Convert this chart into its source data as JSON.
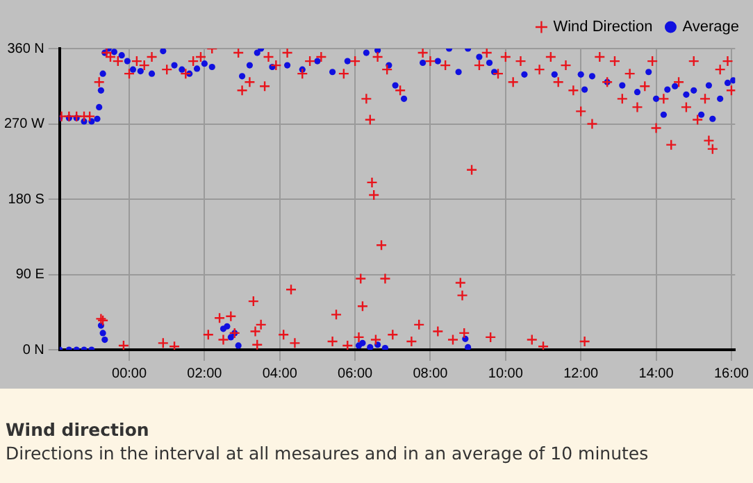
{
  "chart_data": {
    "type": "scatter",
    "title": "Wind direction",
    "subtitle": "Directions in the interval at all mesaures and in an average of 10 minutes",
    "xlim": [
      -1.85,
      16.1
    ],
    "xticks": [
      {
        "value": 0,
        "label": "00:00"
      },
      {
        "value": 2,
        "label": "02:00"
      },
      {
        "value": 4,
        "label": "04:00"
      },
      {
        "value": 6,
        "label": "06:00"
      },
      {
        "value": 8,
        "label": "08:00"
      },
      {
        "value": 10,
        "label": "10:00"
      },
      {
        "value": 12,
        "label": "12:00"
      },
      {
        "value": 14,
        "label": "14:00"
      },
      {
        "value": 16,
        "label": "16:00"
      }
    ],
    "ylim": [
      0,
      360
    ],
    "yticks": [
      {
        "value": 0,
        "label": "0 N"
      },
      {
        "value": 90,
        "label": "90 E"
      },
      {
        "value": 180,
        "label": "180 S"
      },
      {
        "value": 270,
        "label": "270 W"
      },
      {
        "value": 360,
        "label": "360 N"
      }
    ],
    "grid": true,
    "legend": "top right",
    "series": [
      {
        "name": "Wind Direction",
        "color": "#e8141c",
        "marker": "cross",
        "x": [
          -1.8,
          -1.6,
          -1.4,
          -1.2,
          -1.05,
          -0.8,
          -0.75,
          -0.7,
          -0.6,
          -0.5,
          -0.3,
          -0.15,
          0.0,
          0.2,
          0.4,
          0.6,
          0.9,
          1.0,
          1.2,
          1.5,
          1.7,
          1.9,
          2.1,
          2.2,
          2.4,
          2.5,
          2.7,
          2.8,
          2.9,
          3.0,
          3.2,
          3.3,
          3.35,
          3.4,
          3.5,
          3.6,
          3.7,
          3.9,
          4.1,
          4.2,
          4.3,
          4.4,
          4.6,
          4.8,
          5.1,
          5.4,
          5.5,
          5.7,
          5.8,
          6.0,
          6.1,
          6.15,
          6.2,
          6.3,
          6.4,
          6.45,
          6.5,
          6.55,
          6.6,
          6.7,
          6.8,
          6.85,
          7.0,
          7.2,
          7.5,
          7.7,
          7.8,
          8.0,
          8.2,
          8.4,
          8.6,
          8.8,
          8.85,
          8.9,
          9.1,
          9.3,
          9.5,
          9.6,
          9.8,
          10.0,
          10.2,
          10.4,
          10.7,
          10.9,
          11.0,
          11.2,
          11.4,
          11.6,
          11.8,
          12.0,
          12.1,
          12.3,
          12.5,
          12.7,
          12.9,
          13.1,
          13.3,
          13.5,
          13.7,
          13.9,
          14.0,
          14.2,
          14.4,
          14.6,
          14.8,
          15.0,
          15.1,
          15.3,
          15.4,
          15.5,
          15.7,
          15.9,
          16.0
        ],
        "values": [
          279,
          279,
          279,
          279,
          279,
          320,
          37,
          35,
          355,
          350,
          345,
          5,
          330,
          345,
          340,
          350,
          8,
          335,
          4,
          330,
          345,
          350,
          18,
          360,
          38,
          12,
          40,
          20,
          355,
          310,
          320,
          58,
          22,
          6,
          30,
          315,
          350,
          340,
          18,
          355,
          72,
          8,
          330,
          345,
          350,
          10,
          42,
          330,
          5,
          345,
          15,
          85,
          52,
          300,
          275,
          200,
          185,
          12,
          350,
          125,
          85,
          335,
          18,
          310,
          10,
          30,
          355,
          345,
          22,
          340,
          12,
          80,
          65,
          20,
          215,
          340,
          355,
          15,
          330,
          350,
          320,
          345,
          12,
          335,
          4,
          350,
          320,
          340,
          310,
          285,
          10,
          270,
          350,
          320,
          345,
          300,
          330,
          290,
          315,
          345,
          265,
          300,
          245,
          320,
          290,
          345,
          275,
          300,
          250,
          240,
          335,
          345,
          310
        ]
      },
      {
        "name": "Average",
        "color": "#1010e0",
        "marker": "circle",
        "x": [
          -1.85,
          -1.6,
          -1.4,
          -1.2,
          -1.0,
          -0.75,
          -0.7,
          -0.65,
          -1.85,
          -1.6,
          -1.4,
          -1.2,
          -1.0,
          -0.85,
          -0.8,
          -0.75,
          -0.7,
          -0.65,
          -0.55,
          -0.4,
          -0.2,
          -0.05,
          0.1,
          0.3,
          0.6,
          0.9,
          1.2,
          1.4,
          1.6,
          1.8,
          2.0,
          2.2,
          2.5,
          2.6,
          2.7,
          2.8,
          2.9,
          3.0,
          3.2,
          3.4,
          3.5,
          3.8,
          4.2,
          4.6,
          5.0,
          5.4,
          5.8,
          6.1,
          6.2,
          6.4,
          6.6,
          6.8,
          6.3,
          6.6,
          6.9,
          7.07,
          7.3,
          7.8,
          8.2,
          8.5,
          8.75,
          8.93,
          9.0,
          9.0,
          9.3,
          9.57,
          9.7,
          10.5,
          11.3,
          12.0,
          12.1,
          12.3,
          12.7,
          13.1,
          13.5,
          13.8,
          14.0,
          14.2,
          14.3,
          14.5,
          14.8,
          15.0,
          15.2,
          15.4,
          15.5,
          15.7,
          15.9,
          16.05
        ],
        "values": [
          0,
          0,
          0,
          0,
          0,
          29,
          20,
          12,
          277,
          277,
          277,
          273,
          273,
          276,
          290,
          310,
          330,
          355,
          360,
          356,
          352,
          345,
          335,
          333,
          330,
          357,
          340,
          335,
          330,
          336,
          342,
          338,
          25,
          28,
          15,
          20,
          5,
          327,
          340,
          355,
          360,
          338,
          340,
          335,
          345,
          332,
          345,
          5,
          8,
          3,
          6,
          2,
          355,
          358,
          340,
          316,
          300,
          343,
          345,
          360,
          332,
          13,
          3,
          360,
          350,
          343,
          332,
          329,
          329,
          329,
          311,
          327,
          320,
          316,
          308,
          332,
          300,
          281,
          311,
          315,
          305,
          310,
          281,
          316,
          276,
          300,
          319,
          322
        ]
      }
    ]
  }
}
